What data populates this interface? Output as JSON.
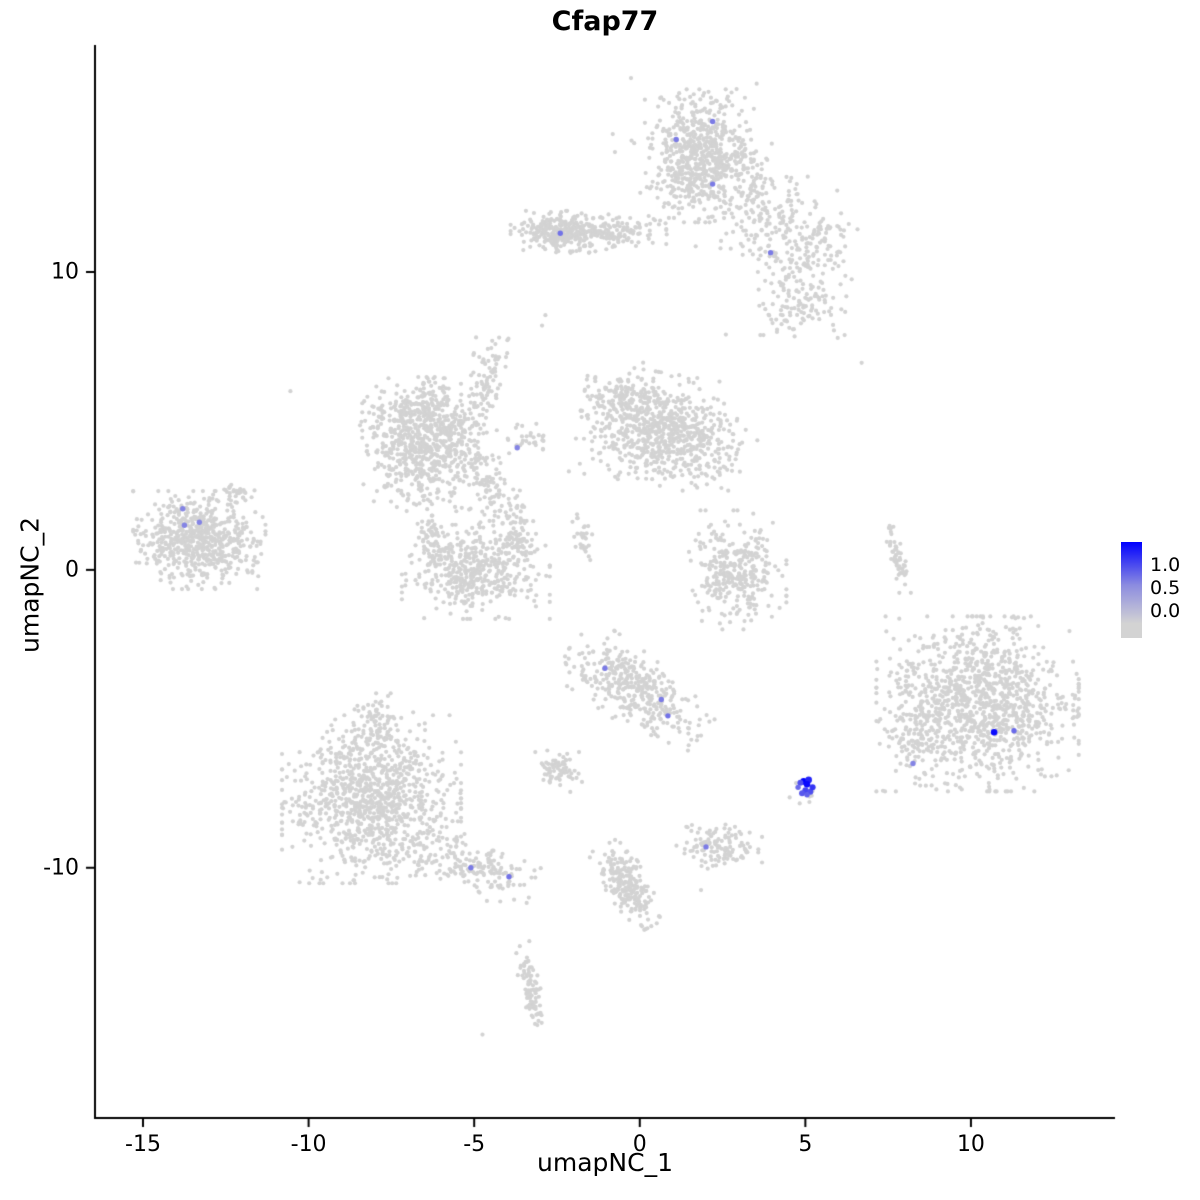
{
  "chart_data": {
    "type": "scatter",
    "title": "Cfap77",
    "xlabel": "umapNC_1",
    "ylabel": "umapNC_2",
    "x_ticks": [
      -15,
      -10,
      -5,
      0,
      5,
      10
    ],
    "y_ticks": [
      -10,
      0,
      10
    ],
    "x_range": [
      -16.45,
      14.35
    ],
    "y_range": [
      -18.4,
      17.62
    ],
    "point_color_low": "#D3D3D3",
    "point_color_high": "#0000FF",
    "value_scale_max": 1.2,
    "clusters": [
      {
        "name": "top-main",
        "cx": 1.8,
        "cy": 13.9,
        "sx": 0.7,
        "sy": 0.95,
        "rot": 0,
        "n": 600
      },
      {
        "name": "top-halo",
        "cx": 1.8,
        "cy": 13.8,
        "sx": 1.15,
        "sy": 1.25,
        "rot": 0,
        "n": 110
      },
      {
        "name": "top-tail-a",
        "cx": 4.2,
        "cy": 11.5,
        "sx": 0.75,
        "sy": 0.8,
        "rot": 0,
        "n": 140
      },
      {
        "name": "top-tail-b",
        "cx": 5.0,
        "cy": 9.6,
        "sx": 0.6,
        "sy": 0.9,
        "rot": 0,
        "n": 130
      },
      {
        "name": "top-tail-c",
        "cx": 3.4,
        "cy": 12.7,
        "sx": 0.5,
        "sy": 0.6,
        "rot": 0,
        "n": 70
      },
      {
        "name": "top-tail-d",
        "cx": 5.7,
        "cy": 11.2,
        "sx": 0.4,
        "sy": 0.5,
        "rot": 0,
        "n": 40
      },
      {
        "name": "top-tail-e",
        "cx": 4.6,
        "cy": 8.5,
        "sx": 0.5,
        "sy": 0.4,
        "rot": 0,
        "n": 35
      },
      {
        "name": "band-main",
        "cx": -1.55,
        "cy": 11.35,
        "sx": 1.0,
        "sy": 0.28,
        "rot": 0,
        "n": 270
      },
      {
        "name": "band-dense",
        "cx": -2.5,
        "cy": 11.35,
        "sx": 0.45,
        "sy": 0.3,
        "rot": 0,
        "n": 160
      },
      {
        "name": "midleft-main",
        "cx": -6.5,
        "cy": 4.2,
        "sx": 0.8,
        "sy": 0.95,
        "rot": 0,
        "n": 650
      },
      {
        "name": "midleft-top",
        "cx": -6.7,
        "cy": 5.3,
        "sx": 0.9,
        "sy": 0.5,
        "rot": 0,
        "n": 150
      },
      {
        "name": "midleft-arm-up",
        "cx": -4.65,
        "cy": 6.4,
        "sx": 0.28,
        "sy": 0.8,
        "rot": -15,
        "n": 90
      },
      {
        "name": "midleft-arm-down",
        "cx": -4.4,
        "cy": 2.7,
        "sx": 0.3,
        "sy": 1.05,
        "rot": 33,
        "n": 130
      },
      {
        "name": "bridge-center",
        "cx": -3.4,
        "cy": 4.4,
        "sx": 0.4,
        "sy": 0.25,
        "rot": 0,
        "n": 30
      },
      {
        "name": "center-main",
        "cx": 0.5,
        "cy": 4.75,
        "sx": 1.0,
        "sy": 0.8,
        "rot": -10,
        "n": 650
      },
      {
        "name": "center-lobe-e",
        "cx": 1.95,
        "cy": 3.95,
        "sx": 0.55,
        "sy": 0.55,
        "rot": 0,
        "n": 110
      },
      {
        "name": "center-lobe-n",
        "cx": -0.6,
        "cy": 5.9,
        "sx": 0.5,
        "sy": 0.45,
        "rot": 0,
        "n": 90
      },
      {
        "name": "bowl-main",
        "cx": -4.95,
        "cy": 0.0,
        "sx": 0.95,
        "sy": 0.7,
        "rot": 0,
        "n": 450
      },
      {
        "name": "bowl-horn-w",
        "cx": -6.3,
        "cy": 1.0,
        "sx": 0.25,
        "sy": 0.35,
        "rot": 0,
        "n": 60
      },
      {
        "name": "bowl-horn-e",
        "cx": -3.65,
        "cy": 0.9,
        "sx": 0.22,
        "sy": 0.32,
        "rot": 0,
        "n": 50
      },
      {
        "name": "left-main",
        "cx": -13.3,
        "cy": 1.0,
        "sx": 0.85,
        "sy": 0.7,
        "rot": 0,
        "n": 620
      },
      {
        "name": "left-satellite",
        "cx": -12.15,
        "cy": 2.5,
        "sx": 0.22,
        "sy": 0.22,
        "rot": 0,
        "n": 35
      },
      {
        "name": "hook-right",
        "cx": 2.9,
        "cy": 0.0,
        "sx": 0.65,
        "sy": 0.85,
        "rot": 0,
        "n": 320
      },
      {
        "name": "streak-right",
        "cx": 7.8,
        "cy": 0.35,
        "sx": 0.1,
        "sy": 0.6,
        "rot": 14,
        "n": 55
      },
      {
        "name": "streak-center",
        "cx": -1.7,
        "cy": 1.05,
        "sx": 0.12,
        "sy": 0.45,
        "rot": 10,
        "n": 30
      },
      {
        "name": "diag-mid",
        "cx": -0.1,
        "cy": -4.05,
        "sx": 1.05,
        "sy": 0.5,
        "rot": -38,
        "n": 380
      },
      {
        "name": "right-main",
        "cx": 10.2,
        "cy": -4.5,
        "sx": 1.3,
        "sy": 1.25,
        "rot": 0,
        "n": 1150
      },
      {
        "name": "right-edge",
        "cx": 8.3,
        "cy": -5.6,
        "sx": 0.35,
        "sy": 0.7,
        "rot": 0,
        "n": 80
      },
      {
        "name": "botleft-main",
        "cx": -8.1,
        "cy": -7.7,
        "sx": 1.15,
        "sy": 1.2,
        "rot": 0,
        "n": 1000
      },
      {
        "name": "botleft-tail",
        "cx": -5.2,
        "cy": -9.9,
        "sx": 0.9,
        "sy": 0.4,
        "rot": -20,
        "n": 170
      },
      {
        "name": "botleft-top",
        "cx": -7.9,
        "cy": -5.2,
        "sx": 0.45,
        "sy": 0.45,
        "rot": 0,
        "n": 80
      },
      {
        "name": "small-blob",
        "cx": -2.45,
        "cy": -6.75,
        "sx": 0.3,
        "sy": 0.3,
        "rot": 0,
        "n": 75
      },
      {
        "name": "expressed-bg",
        "cx": 5.0,
        "cy": -7.3,
        "sx": 0.25,
        "sy": 0.25,
        "rot": 0,
        "n": 12
      },
      {
        "name": "bottom-small",
        "cx": 2.4,
        "cy": -9.3,
        "sx": 0.55,
        "sy": 0.33,
        "rot": 0,
        "n": 120
      },
      {
        "name": "bottom-diag",
        "cx": -0.35,
        "cy": -10.6,
        "sx": 0.28,
        "sy": 0.65,
        "rot": 30,
        "n": 220
      },
      {
        "name": "bottom-streak",
        "cx": -3.3,
        "cy": -14.1,
        "sx": 0.13,
        "sy": 0.7,
        "rot": 12,
        "n": 90
      }
    ],
    "outlier_points": [
      [
        -10.55,
        6.0
      ],
      [
        -2.85,
        8.55
      ],
      [
        -2.95,
        8.2
      ],
      [
        6.7,
        6.95
      ],
      [
        -4.75,
        -15.6
      ],
      [
        1.85,
        -10.75
      ],
      [
        3.2,
        4.7
      ],
      [
        3.55,
        4.35
      ],
      [
        -11.7,
        -0.1
      ],
      [
        6.0,
        10.2
      ],
      [
        2.6,
        7.9
      ]
    ],
    "expressed_points": [
      {
        "x": 1.1,
        "y": 14.45,
        "value": 0.5
      },
      {
        "x": 2.2,
        "y": 15.05,
        "value": 0.5
      },
      {
        "x": 2.2,
        "y": 12.95,
        "value": 0.5
      },
      {
        "x": 3.95,
        "y": 10.65,
        "value": 0.5
      },
      {
        "x": -2.4,
        "y": 11.3,
        "value": 0.55
      },
      {
        "x": -3.7,
        "y": 4.1,
        "value": 0.45
      },
      {
        "x": -13.8,
        "y": 2.05,
        "value": 0.45
      },
      {
        "x": -13.75,
        "y": 1.5,
        "value": 0.45
      },
      {
        "x": -13.3,
        "y": 1.6,
        "value": 0.45
      },
      {
        "x": -1.05,
        "y": -3.3,
        "value": 0.5
      },
      {
        "x": 0.65,
        "y": -4.35,
        "value": 0.5
      },
      {
        "x": 0.85,
        "y": -4.9,
        "value": 0.55
      },
      {
        "x": 10.7,
        "y": -5.45,
        "value": 1.15
      },
      {
        "x": 11.3,
        "y": -5.4,
        "value": 0.6
      },
      {
        "x": 8.25,
        "y": -6.5,
        "value": 0.45
      },
      {
        "x": -5.1,
        "y": -10.0,
        "value": 0.5
      },
      {
        "x": -3.95,
        "y": -10.3,
        "value": 0.55
      },
      {
        "x": 2.0,
        "y": -9.3,
        "value": 0.5
      },
      {
        "x": 4.95,
        "y": -7.1,
        "value": 1.2
      },
      {
        "x": 5.1,
        "y": -7.05,
        "value": 1.0
      },
      {
        "x": 5.05,
        "y": -7.2,
        "value": 1.15
      },
      {
        "x": 4.85,
        "y": -7.15,
        "value": 0.75
      },
      {
        "x": 5.0,
        "y": -7.4,
        "value": 0.8
      },
      {
        "x": 5.15,
        "y": -7.45,
        "value": 0.75
      },
      {
        "x": 4.9,
        "y": -7.5,
        "value": 0.7
      },
      {
        "x": 4.78,
        "y": -7.3,
        "value": 0.6
      },
      {
        "x": 5.22,
        "y": -7.3,
        "value": 0.9
      },
      {
        "x": 5.05,
        "y": -7.55,
        "value": 0.65
      }
    ]
  },
  "legend": {
    "labels": [
      "1.0",
      "0.5",
      "0.0"
    ],
    "color_high": "#0000FF",
    "color_mid": "#8C8CE0",
    "color_low": "#D3D3D3"
  }
}
